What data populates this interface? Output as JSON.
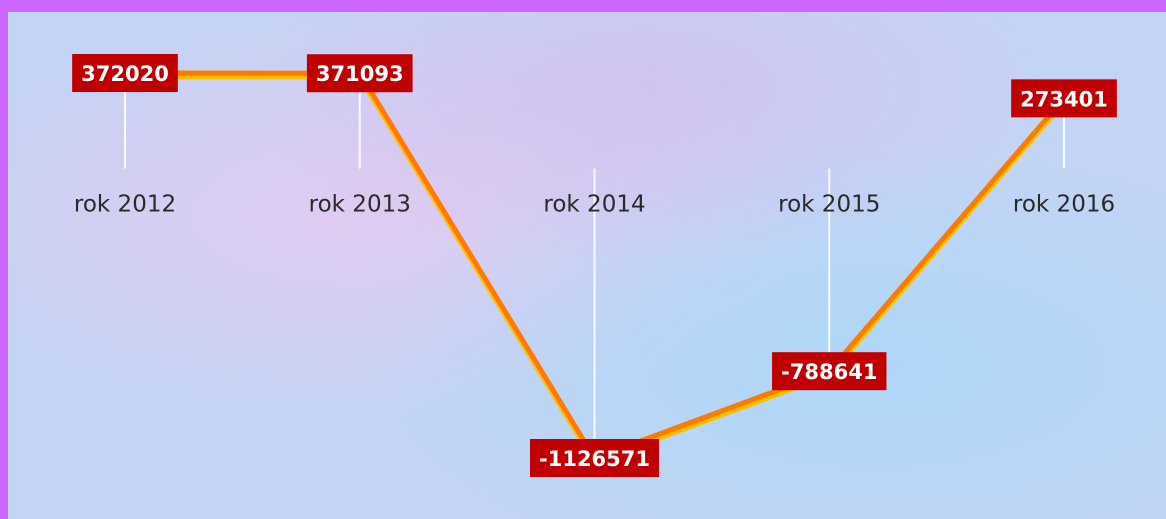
{
  "chart_data": {
    "type": "line",
    "categories": [
      "rok 2012",
      "rok 2013",
      "rok 2014",
      "rok 2015",
      "rok 2016"
    ],
    "values": [
      372020,
      371093,
      -1126571,
      -788641,
      273401
    ],
    "color": "#ff7a00",
    "label_color": "#c00000"
  }
}
